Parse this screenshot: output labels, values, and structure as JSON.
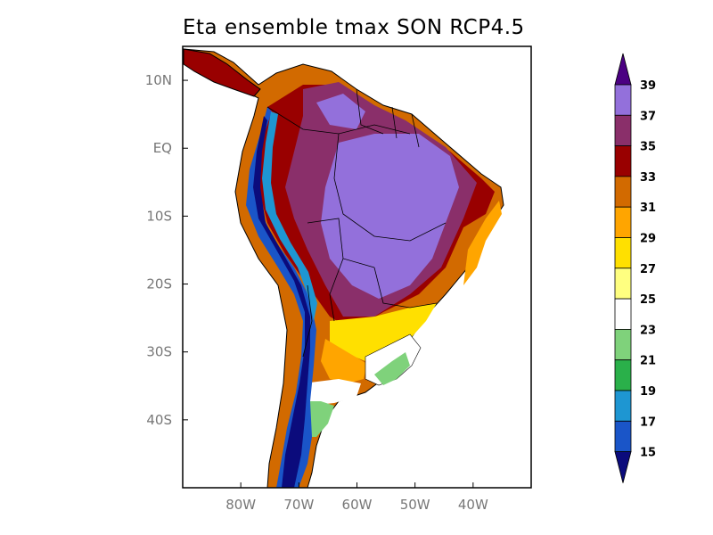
{
  "title": "Eta ensemble tmax SON RCP4.5",
  "map": {
    "lat_ticks": [
      {
        "label": "10N",
        "lat": 10
      },
      {
        "label": "EQ",
        "lat": 0
      },
      {
        "label": "10S",
        "lat": -10
      },
      {
        "label": "20S",
        "lat": -20
      },
      {
        "label": "30S",
        "lat": -30
      },
      {
        "label": "40S",
        "lat": -40
      }
    ],
    "lon_ticks": [
      {
        "label": "80W",
        "lon": -80
      },
      {
        "label": "70W",
        "lon": -70
      },
      {
        "label": "60W",
        "lon": -60
      },
      {
        "label": "50W",
        "lon": -50
      },
      {
        "label": "40W",
        "lon": -40
      }
    ],
    "extent": {
      "lon_min": -90,
      "lon_max": -30,
      "lat_min": -50,
      "lat_max": 15
    }
  },
  "colorbar": {
    "levels": [
      "15",
      "17",
      "19",
      "21",
      "23",
      "25",
      "27",
      "29",
      "31",
      "33",
      "35",
      "37",
      "39"
    ],
    "colors": [
      "#0b0b7c",
      "#1a55c8",
      "#1e96d2",
      "#2ab04a",
      "#7fd27b",
      "#ffffff",
      "#ffff80",
      "#ffe000",
      "#ffa500",
      "#d26a00",
      "#990000",
      "#8a2f6a",
      "#9370db",
      "#4b0082"
    ]
  },
  "regions": [
    {
      "name": "andes-deep-blue",
      "color": "#0b0b7c"
    },
    {
      "name": "andes-blue",
      "color": "#1a55c8"
    },
    {
      "name": "coast-orange",
      "color": "#d26a00"
    },
    {
      "name": "amazon-maroon",
      "color": "#990000"
    },
    {
      "name": "interior-plum",
      "color": "#8a2f6a"
    },
    {
      "name": "central-lavender",
      "color": "#9370db"
    },
    {
      "name": "south-yellow",
      "color": "#ffe000"
    },
    {
      "name": "pampas-green",
      "color": "#7fd27b"
    }
  ]
}
